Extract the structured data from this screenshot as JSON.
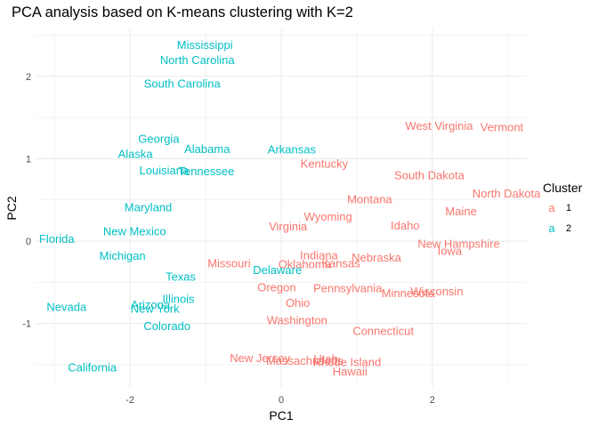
{
  "chart_data": {
    "type": "scatter",
    "title": "PCA analysis based on K-means clustering with K=2",
    "xlabel": "PC1",
    "ylabel": "PC2",
    "xlim": [
      -3.25,
      3.25
    ],
    "ylim": [
      -1.77,
      2.57
    ],
    "x_ticks": [
      -2,
      0,
      2
    ],
    "y_ticks": [
      -1,
      0,
      1,
      2
    ],
    "grid": true,
    "legend": {
      "title": "Cluster",
      "placement": "right",
      "entries": [
        {
          "key": "a",
          "label": "1",
          "color": "#F8766D"
        },
        {
          "key": "a",
          "label": "2",
          "color": "#00BFC4"
        }
      ]
    },
    "series": [
      {
        "name": "1",
        "color": "#F8766D",
        "points": [
          {
            "label": "West Virginia",
            "x": 2.09,
            "y": 1.4
          },
          {
            "label": "Vermont",
            "x": 2.92,
            "y": 1.38
          },
          {
            "label": "Kentucky",
            "x": 0.57,
            "y": 0.94
          },
          {
            "label": "South Dakota",
            "x": 1.96,
            "y": 0.8
          },
          {
            "label": "North Dakota",
            "x": 2.98,
            "y": 0.58
          },
          {
            "label": "Montana",
            "x": 1.17,
            "y": 0.51
          },
          {
            "label": "Maine",
            "x": 2.38,
            "y": 0.36
          },
          {
            "label": "Wyoming",
            "x": 0.62,
            "y": 0.3
          },
          {
            "label": "Virginia",
            "x": 0.09,
            "y": 0.18
          },
          {
            "label": "Idaho",
            "x": 1.64,
            "y": 0.19
          },
          {
            "label": "New Hampshire",
            "x": 2.35,
            "y": -0.03
          },
          {
            "label": "Iowa",
            "x": 2.23,
            "y": -0.12
          },
          {
            "label": "Indiana",
            "x": 0.5,
            "y": -0.17
          },
          {
            "label": "Nebraska",
            "x": 1.26,
            "y": -0.2
          },
          {
            "label": "Missouri",
            "x": -0.69,
            "y": -0.27
          },
          {
            "label": "Kansas",
            "x": 0.79,
            "y": -0.27
          },
          {
            "label": "Oklahoma",
            "x": 0.31,
            "y": -0.28
          },
          {
            "label": "Oregon",
            "x": -0.06,
            "y": -0.56
          },
          {
            "label": "Pennsylvania",
            "x": 0.88,
            "y": -0.57
          },
          {
            "label": "Wisconsin",
            "x": 2.06,
            "y": -0.61
          },
          {
            "label": "Minnesota",
            "x": 1.68,
            "y": -0.63
          },
          {
            "label": "Ohio",
            "x": 0.22,
            "y": -0.75
          },
          {
            "label": "Washington",
            "x": 0.21,
            "y": -0.96
          },
          {
            "label": "Connecticut",
            "x": 1.35,
            "y": -1.09
          },
          {
            "label": "New Jersey",
            "x": -0.28,
            "y": -1.42
          },
          {
            "label": "Massachusetts",
            "x": 0.31,
            "y": -1.45
          },
          {
            "label": "Rhode Island",
            "x": 0.87,
            "y": -1.47
          },
          {
            "label": "Utah",
            "x": 0.59,
            "y": -1.43
          },
          {
            "label": "Hawaii",
            "x": 0.91,
            "y": -1.58
          }
        ]
      },
      {
        "name": "2",
        "color": "#00BFC4",
        "points": [
          {
            "label": "Mississippi",
            "x": -1.01,
            "y": 2.38
          },
          {
            "label": "North Carolina",
            "x": -1.11,
            "y": 2.2
          },
          {
            "label": "South Carolina",
            "x": -1.31,
            "y": 1.91
          },
          {
            "label": "Georgia",
            "x": -1.62,
            "y": 1.24
          },
          {
            "label": "Alabama",
            "x": -0.98,
            "y": 1.12
          },
          {
            "label": "Alaska",
            "x": -1.93,
            "y": 1.06
          },
          {
            "label": "Arkansas",
            "x": 0.14,
            "y": 1.11
          },
          {
            "label": "Louisiana",
            "x": -1.55,
            "y": 0.86
          },
          {
            "label": "Tennessee",
            "x": -0.99,
            "y": 0.85
          },
          {
            "label": "Maryland",
            "x": -1.76,
            "y": 0.41
          },
          {
            "label": "New Mexico",
            "x": -1.94,
            "y": 0.12
          },
          {
            "label": "Florida",
            "x": -2.97,
            "y": 0.03
          },
          {
            "label": "Michigan",
            "x": -2.1,
            "y": -0.18
          },
          {
            "label": "Texas",
            "x": -1.33,
            "y": -0.43
          },
          {
            "label": "Delaware",
            "x": -0.05,
            "y": -0.35
          },
          {
            "label": "Illinois",
            "x": -1.36,
            "y": -0.7
          },
          {
            "label": "Arizona",
            "x": -1.73,
            "y": -0.77
          },
          {
            "label": "New York",
            "x": -1.67,
            "y": -0.82
          },
          {
            "label": "Nevada",
            "x": -2.84,
            "y": -0.8
          },
          {
            "label": "Colorado",
            "x": -1.51,
            "y": -1.03
          },
          {
            "label": "California",
            "x": -2.5,
            "y": -1.53
          }
        ]
      }
    ]
  }
}
